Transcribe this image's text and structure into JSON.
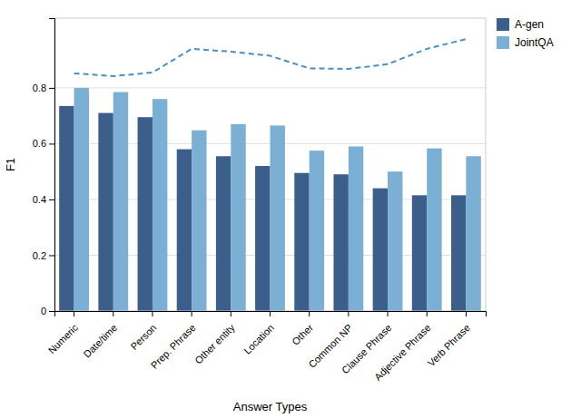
{
  "chart_data": {
    "type": "bar",
    "xlabel": "Answer Types",
    "ylabel": "F1",
    "categories": [
      "Numeric",
      "Date/time",
      "Person",
      "Prep. Phrase",
      "Other entity",
      "Location",
      "Other",
      "Common NP",
      "Clause Phrase",
      "Adjective Phrase",
      "Verb Phrase"
    ],
    "series": [
      {
        "name": "A-gen",
        "type": "bar",
        "color": "#3B5F8A",
        "values": [
          0.735,
          0.71,
          0.695,
          0.58,
          0.555,
          0.52,
          0.495,
          0.49,
          0.44,
          0.415,
          0.415
        ]
      },
      {
        "name": "JointQA",
        "type": "bar",
        "color": "#7BAFD4",
        "values": [
          0.8,
          0.785,
          0.76,
          0.648,
          0.67,
          0.665,
          0.575,
          0.59,
          0.5,
          0.583,
          0.555
        ]
      },
      {
        "type": "line",
        "color": "#4A90C4",
        "line_style": "dashed",
        "values": [
          0.852,
          0.842,
          0.855,
          0.94,
          0.93,
          0.915,
          0.87,
          0.868,
          0.885,
          0.94,
          0.975
        ]
      }
    ],
    "ylim": [
      0,
      1.05
    ],
    "yticks": [
      0,
      0.2,
      0.4,
      0.6,
      0.8
    ],
    "grid": true,
    "legend": "upper right"
  }
}
